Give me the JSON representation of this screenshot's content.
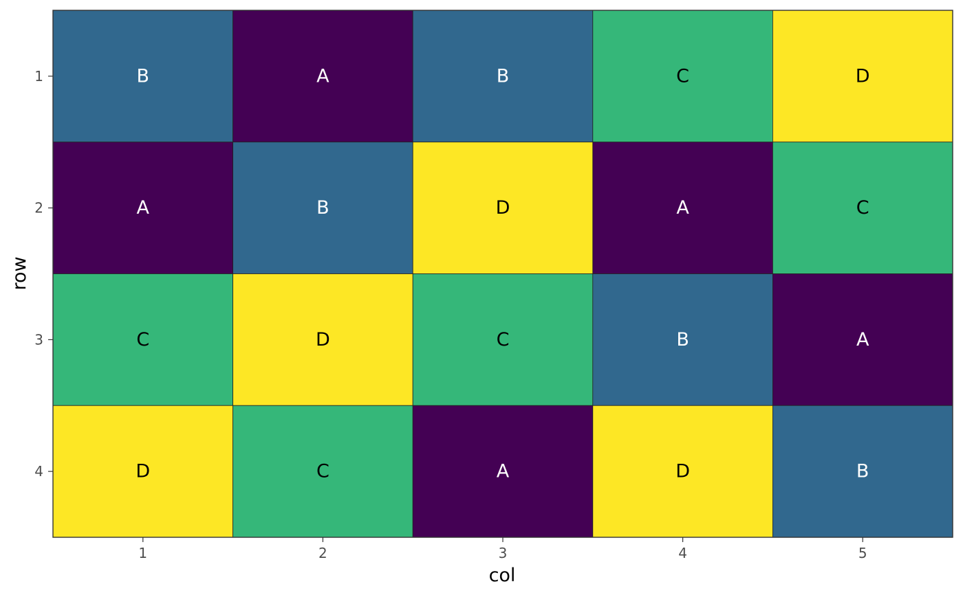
{
  "chart_data": {
    "type": "heatmap",
    "title": "",
    "xlabel": "col",
    "ylabel": "row",
    "x": [
      1,
      2,
      3,
      4,
      5
    ],
    "y": [
      1,
      2,
      3,
      4
    ],
    "y_reversed": true,
    "values": [
      [
        "B",
        "A",
        "B",
        "C",
        "D"
      ],
      [
        "A",
        "B",
        "D",
        "A",
        "C"
      ],
      [
        "C",
        "D",
        "C",
        "B",
        "A"
      ],
      [
        "D",
        "C",
        "A",
        "D",
        "B"
      ]
    ],
    "fill_colors": {
      "A": "#440154",
      "B": "#31688e",
      "C": "#35b779",
      "D": "#fde725"
    },
    "label_colors": {
      "A": "#ffffff",
      "B": "#ffffff",
      "C": "#000000",
      "D": "#000000"
    },
    "legend": "none",
    "grid": false
  }
}
